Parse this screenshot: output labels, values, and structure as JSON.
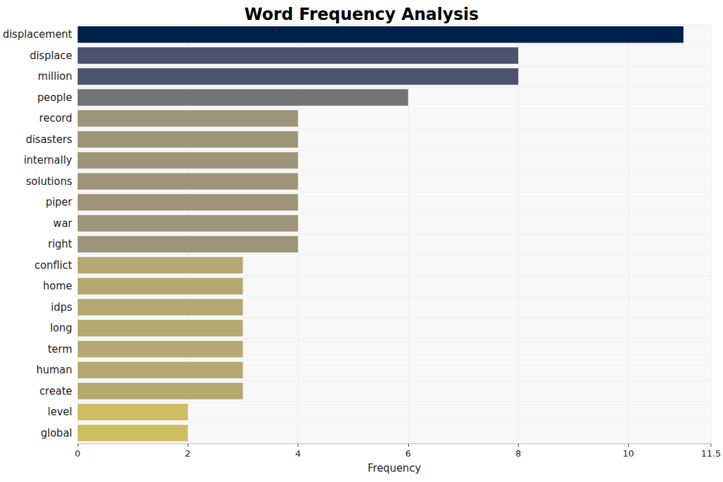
{
  "chart_data": {
    "type": "bar",
    "title": "Word Frequency Analysis",
    "orientation": "horizontal",
    "categories": [
      "displacement",
      "displace",
      "million",
      "people",
      "record",
      "disasters",
      "internally",
      "solutions",
      "piper",
      "war",
      "right",
      "conflict",
      "home",
      "idps",
      "long",
      "term",
      "human",
      "create",
      "level",
      "global"
    ],
    "values": [
      11,
      8,
      8,
      6,
      4,
      4,
      4,
      4,
      4,
      4,
      4,
      3,
      3,
      3,
      3,
      3,
      3,
      3,
      2,
      2
    ],
    "colors": [
      "#00204c",
      "#4a546e",
      "#4a546e",
      "#737373",
      "#9e9479",
      "#9e9479",
      "#9e9479",
      "#9e9479",
      "#9e9479",
      "#9e9479",
      "#9e9479",
      "#b5a871",
      "#b5a871",
      "#b5a871",
      "#b5a871",
      "#b5a871",
      "#b5a871",
      "#b5a871",
      "#d0bd62",
      "#d0bd62"
    ],
    "x_label": "Frequency",
    "xlim": [
      0,
      11.5
    ],
    "xticks": [
      0,
      2,
      4,
      6,
      8,
      10
    ],
    "grid": true
  }
}
